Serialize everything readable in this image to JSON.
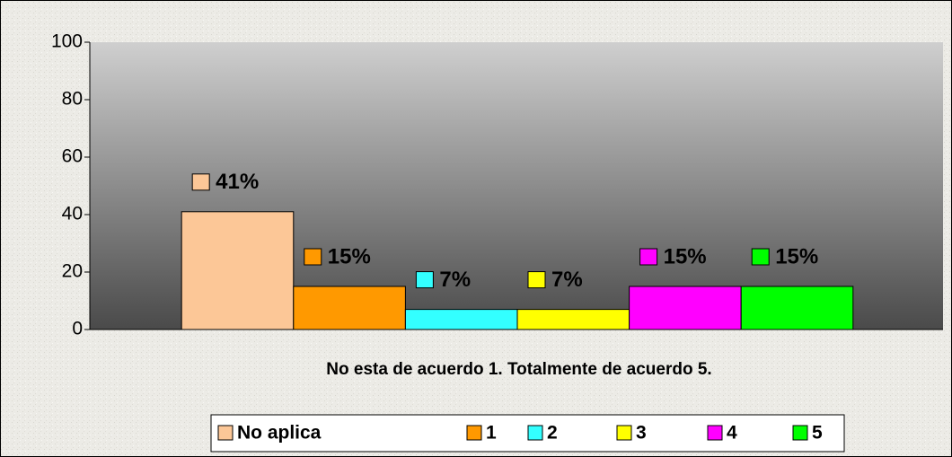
{
  "chart_data": {
    "type": "bar",
    "x_label": "No esta de acuerdo 1.  Totalmente de acuerdo 5.",
    "categories": [
      null
    ],
    "series": [
      {
        "name": "No aplica",
        "color": "#fcc797",
        "values": [
          41
        ],
        "value_labels": [
          "41%"
        ]
      },
      {
        "name": "1",
        "color": "#ff9900",
        "values": [
          15
        ],
        "value_labels": [
          "15%"
        ]
      },
      {
        "name": "2",
        "color": "#33ffff",
        "values": [
          7
        ],
        "value_labels": [
          "7%"
        ]
      },
      {
        "name": "3",
        "color": "#ffff00",
        "values": [
          7
        ],
        "value_labels": [
          "7%"
        ]
      },
      {
        "name": "4",
        "color": "#ff00ff",
        "values": [
          15
        ],
        "value_labels": [
          "15%"
        ]
      },
      {
        "name": "5",
        "color": "#00ff00",
        "values": [
          15
        ],
        "value_labels": [
          "15%"
        ]
      }
    ],
    "ylim": [
      0,
      100
    ],
    "yticks": [
      0,
      20,
      40,
      60,
      80,
      100
    ],
    "grid": false,
    "legend": "bottom"
  }
}
